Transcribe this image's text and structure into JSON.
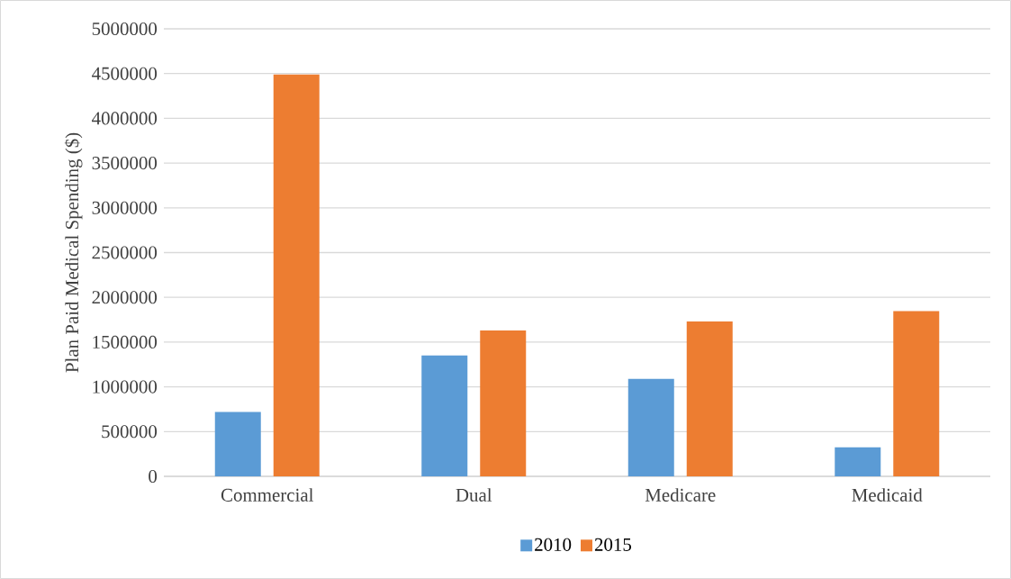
{
  "chart_data": {
    "type": "bar",
    "ylabel": "Plan Paid Medical Spending ($)",
    "categories": [
      "Commercial",
      "Dual",
      "Medicare",
      "Medicaid"
    ],
    "series": [
      {
        "name": "2010",
        "color": "#5b9bd5",
        "values": [
          720000,
          1350000,
          1090000,
          325000
        ]
      },
      {
        "name": "2015",
        "color": "#ed7d31",
        "values": [
          4490000,
          1630000,
          1730000,
          1845000
        ]
      }
    ],
    "ylim": [
      0,
      5000000
    ],
    "yticks": [
      0,
      500000,
      1000000,
      1500000,
      2000000,
      2500000,
      3000000,
      3500000,
      4000000,
      4500000,
      5000000
    ],
    "grid": "y",
    "legend": "bottom"
  }
}
